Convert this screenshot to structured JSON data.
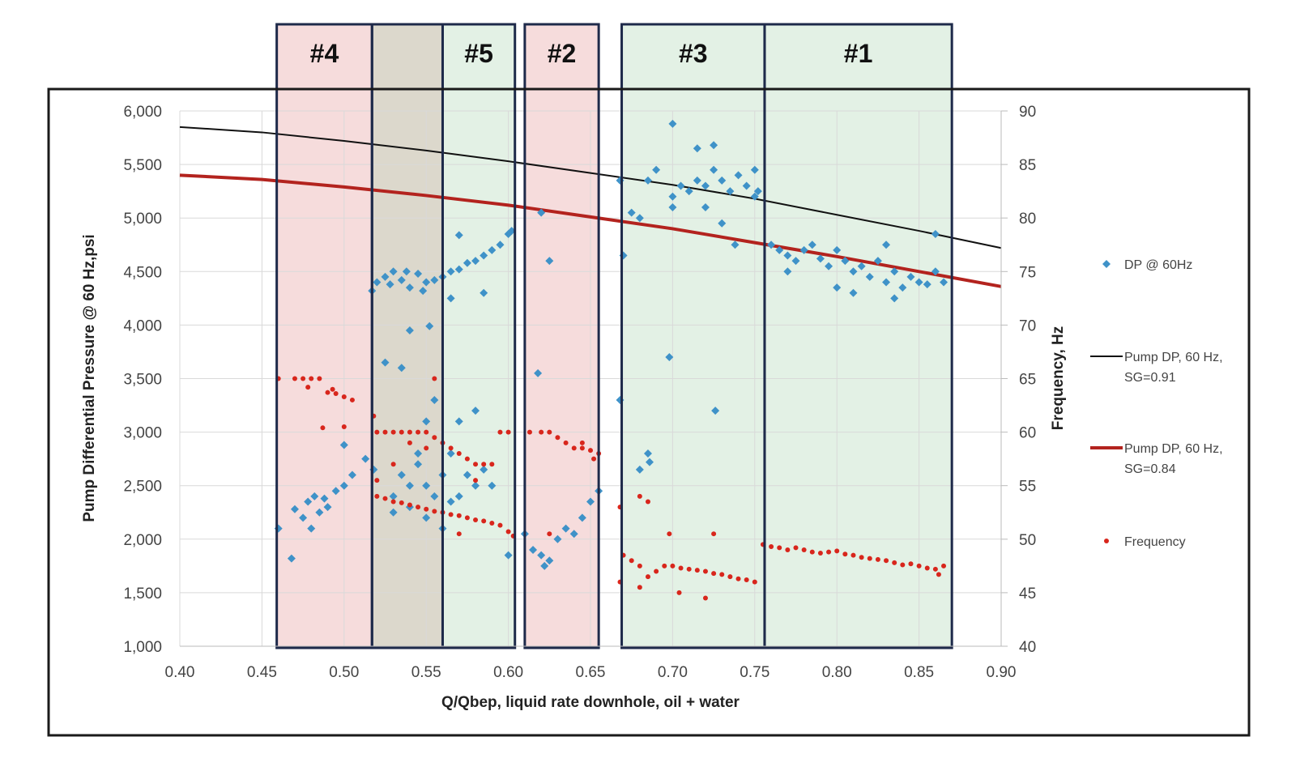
{
  "chart_data": {
    "type": "scatter",
    "xlabel": "Q/Qbep, liquid rate downhole, oil + water",
    "ylabel": "Pump Differential Pressure @ 60 Hz,psi",
    "y2label": "Frequency, Hz",
    "xlim": [
      0.4,
      0.9
    ],
    "ylim": [
      1000,
      6000
    ],
    "y2lim": [
      40,
      90
    ],
    "grid": true,
    "legend_position": "right",
    "x_ticks": [
      "0.40",
      "0.45",
      "0.50",
      "0.55",
      "0.60",
      "0.65",
      "0.70",
      "0.75",
      "0.80",
      "0.85",
      "0.90"
    ],
    "y_ticks": [
      "1,000",
      "1,500",
      "2,000",
      "2,500",
      "3,000",
      "3,500",
      "4,000",
      "4,500",
      "5,000",
      "5,500",
      "6,000"
    ],
    "y2_ticks": [
      "40",
      "45",
      "50",
      "55",
      "60",
      "65",
      "70",
      "75",
      "80",
      "85",
      "90"
    ],
    "regions": [
      {
        "label": "#4",
        "x": [
          0.459,
          0.517
        ],
        "color": "#f6dcdc"
      },
      {
        "label": "",
        "x": [
          0.517,
          0.56
        ],
        "color": "#dcd8cc"
      },
      {
        "label": "#5",
        "x": [
          0.56,
          0.604
        ],
        "color": "#e3f1e5"
      },
      {
        "label": "#2",
        "x": [
          0.61,
          0.655
        ],
        "color": "#f6dcdc"
      },
      {
        "label": "#3",
        "x": [
          0.669,
          0.756
        ],
        "color": "#e3f1e5"
      },
      {
        "label": "#1",
        "x": [
          0.756,
          0.87
        ],
        "color": "#e3f1e5"
      }
    ],
    "series": [
      {
        "name": "DP @ 60Hz",
        "kind": "scatter",
        "axis": "left",
        "marker": "diamond",
        "color": "#3f92c8",
        "points": [
          [
            0.46,
            2100
          ],
          [
            0.468,
            1820
          ],
          [
            0.47,
            2280
          ],
          [
            0.475,
            2200
          ],
          [
            0.478,
            2350
          ],
          [
            0.48,
            2100
          ],
          [
            0.482,
            2400
          ],
          [
            0.485,
            2250
          ],
          [
            0.488,
            2380
          ],
          [
            0.49,
            2300
          ],
          [
            0.495,
            2450
          ],
          [
            0.5,
            2500
          ],
          [
            0.505,
            2600
          ],
          [
            0.5,
            2880
          ],
          [
            0.513,
            2750
          ],
          [
            0.518,
            2650
          ],
          [
            0.517,
            4320
          ],
          [
            0.52,
            4400
          ],
          [
            0.525,
            4450
          ],
          [
            0.53,
            4500
          ],
          [
            0.535,
            4420
          ],
          [
            0.54,
            4350
          ],
          [
            0.545,
            4480
          ],
          [
            0.55,
            4400
          ],
          [
            0.555,
            4420
          ],
          [
            0.528,
            4380
          ],
          [
            0.538,
            4500
          ],
          [
            0.548,
            4320
          ],
          [
            0.54,
            3950
          ],
          [
            0.552,
            3990
          ],
          [
            0.525,
            3650
          ],
          [
            0.535,
            3600
          ],
          [
            0.53,
            2400
          ],
          [
            0.535,
            2600
          ],
          [
            0.54,
            2300
          ],
          [
            0.545,
            2800
          ],
          [
            0.55,
            3100
          ],
          [
            0.555,
            3300
          ],
          [
            0.56,
            2100
          ],
          [
            0.55,
            2200
          ],
          [
            0.54,
            2500
          ],
          [
            0.545,
            2700
          ],
          [
            0.55,
            2500
          ],
          [
            0.555,
            2400
          ],
          [
            0.53,
            2250
          ],
          [
            0.56,
            2600
          ],
          [
            0.56,
            4450
          ],
          [
            0.565,
            4500
          ],
          [
            0.57,
            4520
          ],
          [
            0.575,
            4580
          ],
          [
            0.58,
            4600
          ],
          [
            0.585,
            4650
          ],
          [
            0.59,
            4700
          ],
          [
            0.595,
            4750
          ],
          [
            0.6,
            4850
          ],
          [
            0.602,
            4880
          ],
          [
            0.57,
            4840
          ],
          [
            0.585,
            4300
          ],
          [
            0.565,
            4250
          ],
          [
            0.565,
            2800
          ],
          [
            0.57,
            3100
          ],
          [
            0.58,
            3200
          ],
          [
            0.575,
            2600
          ],
          [
            0.585,
            2650
          ],
          [
            0.59,
            2500
          ],
          [
            0.57,
            2400
          ],
          [
            0.565,
            2350
          ],
          [
            0.6,
            1850
          ],
          [
            0.58,
            2500
          ],
          [
            0.62,
            5050
          ],
          [
            0.625,
            4600
          ],
          [
            0.618,
            3550
          ],
          [
            0.61,
            2050
          ],
          [
            0.615,
            1900
          ],
          [
            0.62,
            1850
          ],
          [
            0.625,
            1800
          ],
          [
            0.63,
            2000
          ],
          [
            0.635,
            2100
          ],
          [
            0.64,
            2050
          ],
          [
            0.645,
            2200
          ],
          [
            0.65,
            2350
          ],
          [
            0.655,
            2450
          ],
          [
            0.622,
            1750
          ],
          [
            0.668,
            3300
          ],
          [
            0.67,
            4650
          ],
          [
            0.668,
            5350
          ],
          [
            0.675,
            5050
          ],
          [
            0.68,
            5000
          ],
          [
            0.685,
            5350
          ],
          [
            0.69,
            5450
          ],
          [
            0.7,
            5880
          ],
          [
            0.7,
            5200
          ],
          [
            0.705,
            5300
          ],
          [
            0.71,
            5250
          ],
          [
            0.715,
            5350
          ],
          [
            0.72,
            5300
          ],
          [
            0.725,
            5450
          ],
          [
            0.73,
            5350
          ],
          [
            0.735,
            5250
          ],
          [
            0.74,
            5400
          ],
          [
            0.745,
            5300
          ],
          [
            0.75,
            5200
          ],
          [
            0.715,
            5650
          ],
          [
            0.725,
            5680
          ],
          [
            0.7,
            5100
          ],
          [
            0.72,
            5100
          ],
          [
            0.738,
            4750
          ],
          [
            0.73,
            4950
          ],
          [
            0.698,
            3700
          ],
          [
            0.726,
            3200
          ],
          [
            0.685,
            2800
          ],
          [
            0.68,
            2650
          ],
          [
            0.686,
            2720
          ],
          [
            0.75,
            5450
          ],
          [
            0.752,
            5250
          ],
          [
            0.76,
            4750
          ],
          [
            0.765,
            4700
          ],
          [
            0.77,
            4650
          ],
          [
            0.775,
            4600
          ],
          [
            0.78,
            4700
          ],
          [
            0.785,
            4750
          ],
          [
            0.79,
            4620
          ],
          [
            0.795,
            4550
          ],
          [
            0.8,
            4700
          ],
          [
            0.805,
            4600
          ],
          [
            0.81,
            4500
          ],
          [
            0.815,
            4550
          ],
          [
            0.82,
            4450
          ],
          [
            0.825,
            4600
          ],
          [
            0.83,
            4400
          ],
          [
            0.835,
            4500
          ],
          [
            0.84,
            4350
          ],
          [
            0.845,
            4450
          ],
          [
            0.85,
            4400
          ],
          [
            0.855,
            4380
          ],
          [
            0.86,
            4500
          ],
          [
            0.865,
            4400
          ],
          [
            0.8,
            4350
          ],
          [
            0.835,
            4250
          ],
          [
            0.86,
            4850
          ],
          [
            0.83,
            4750
          ],
          [
            0.77,
            4500
          ],
          [
            0.81,
            4300
          ]
        ]
      },
      {
        "name": "Pump DP, 60 Hz, SG=0.91",
        "name_lines": [
          "Pump DP, 60 Hz,",
          "SG=0.91"
        ],
        "kind": "line",
        "axis": "left",
        "color": "#111111",
        "points": [
          [
            0.4,
            5850
          ],
          [
            0.45,
            5800
          ],
          [
            0.5,
            5720
          ],
          [
            0.55,
            5630
          ],
          [
            0.6,
            5530
          ],
          [
            0.65,
            5420
          ],
          [
            0.7,
            5310
          ],
          [
            0.75,
            5180
          ],
          [
            0.8,
            5030
          ],
          [
            0.85,
            4880
          ],
          [
            0.9,
            4720
          ]
        ]
      },
      {
        "name": "Pump DP, 60 Hz, SG=0.84",
        "name_lines": [
          "Pump DP, 60 Hz,",
          "SG=0.84"
        ],
        "kind": "line",
        "axis": "left",
        "color": "#b3231e",
        "points": [
          [
            0.4,
            5400
          ],
          [
            0.45,
            5360
          ],
          [
            0.5,
            5290
          ],
          [
            0.55,
            5210
          ],
          [
            0.6,
            5120
          ],
          [
            0.65,
            5010
          ],
          [
            0.7,
            4900
          ],
          [
            0.75,
            4770
          ],
          [
            0.8,
            4640
          ],
          [
            0.85,
            4500
          ],
          [
            0.9,
            4360
          ]
        ]
      },
      {
        "name": "Frequency",
        "kind": "scatter",
        "axis": "right",
        "marker": "dot",
        "color": "#d8261c",
        "points": [
          [
            0.46,
            65
          ],
          [
            0.47,
            65
          ],
          [
            0.475,
            65
          ],
          [
            0.48,
            65
          ],
          [
            0.485,
            65
          ],
          [
            0.478,
            64.2
          ],
          [
            0.49,
            63.7
          ],
          [
            0.493,
            64
          ],
          [
            0.495,
            63.6
          ],
          [
            0.5,
            63.3
          ],
          [
            0.505,
            63
          ],
          [
            0.518,
            61.5
          ],
          [
            0.5,
            60.5
          ],
          [
            0.487,
            60.4
          ],
          [
            0.52,
            60
          ],
          [
            0.525,
            60
          ],
          [
            0.53,
            60
          ],
          [
            0.535,
            60
          ],
          [
            0.54,
            60
          ],
          [
            0.545,
            60
          ],
          [
            0.55,
            60
          ],
          [
            0.555,
            59.5
          ],
          [
            0.56,
            59
          ],
          [
            0.565,
            58.5
          ],
          [
            0.57,
            58
          ],
          [
            0.575,
            57.5
          ],
          [
            0.58,
            57
          ],
          [
            0.585,
            57
          ],
          [
            0.59,
            57
          ],
          [
            0.595,
            60
          ],
          [
            0.54,
            59
          ],
          [
            0.55,
            58.5
          ],
          [
            0.53,
            57
          ],
          [
            0.58,
            55.5
          ],
          [
            0.52,
            55.5
          ],
          [
            0.555,
            65
          ],
          [
            0.52,
            54
          ],
          [
            0.525,
            53.8
          ],
          [
            0.53,
            53.5
          ],
          [
            0.535,
            53.4
          ],
          [
            0.54,
            53.2
          ],
          [
            0.545,
            53
          ],
          [
            0.55,
            52.8
          ],
          [
            0.555,
            52.6
          ],
          [
            0.56,
            52.5
          ],
          [
            0.565,
            52.3
          ],
          [
            0.57,
            52.2
          ],
          [
            0.575,
            52
          ],
          [
            0.58,
            51.8
          ],
          [
            0.585,
            51.7
          ],
          [
            0.59,
            51.5
          ],
          [
            0.595,
            51.3
          ],
          [
            0.6,
            50.7
          ],
          [
            0.603,
            50.3
          ],
          [
            0.57,
            50.5
          ],
          [
            0.6,
            60
          ],
          [
            0.613,
            60
          ],
          [
            0.62,
            60
          ],
          [
            0.625,
            60
          ],
          [
            0.63,
            59.5
          ],
          [
            0.635,
            59
          ],
          [
            0.64,
            58.5
          ],
          [
            0.645,
            58.5
          ],
          [
            0.65,
            58.3
          ],
          [
            0.655,
            58
          ],
          [
            0.645,
            59
          ],
          [
            0.652,
            57.5
          ],
          [
            0.625,
            50.5
          ],
          [
            0.668,
            53
          ],
          [
            0.67,
            48.5
          ],
          [
            0.675,
            48
          ],
          [
            0.68,
            47.5
          ],
          [
            0.685,
            46.5
          ],
          [
            0.69,
            47
          ],
          [
            0.695,
            47.5
          ],
          [
            0.7,
            47.5
          ],
          [
            0.705,
            47.3
          ],
          [
            0.71,
            47.2
          ],
          [
            0.715,
            47.1
          ],
          [
            0.72,
            47
          ],
          [
            0.725,
            46.8
          ],
          [
            0.73,
            46.7
          ],
          [
            0.735,
            46.5
          ],
          [
            0.74,
            46.3
          ],
          [
            0.745,
            46.2
          ],
          [
            0.75,
            46
          ],
          [
            0.68,
            54
          ],
          [
            0.685,
            53.5
          ],
          [
            0.698,
            50.5
          ],
          [
            0.725,
            50.5
          ],
          [
            0.704,
            45
          ],
          [
            0.72,
            44.5
          ],
          [
            0.68,
            45.5
          ],
          [
            0.668,
            46
          ],
          [
            0.755,
            49.5
          ],
          [
            0.76,
            49.3
          ],
          [
            0.765,
            49.2
          ],
          [
            0.77,
            49
          ],
          [
            0.775,
            49.2
          ],
          [
            0.78,
            49
          ],
          [
            0.785,
            48.8
          ],
          [
            0.79,
            48.7
          ],
          [
            0.795,
            48.8
          ],
          [
            0.8,
            48.9
          ],
          [
            0.805,
            48.6
          ],
          [
            0.81,
            48.5
          ],
          [
            0.815,
            48.3
          ],
          [
            0.82,
            48.2
          ],
          [
            0.825,
            48.1
          ],
          [
            0.83,
            48
          ],
          [
            0.835,
            47.8
          ],
          [
            0.84,
            47.6
          ],
          [
            0.845,
            47.7
          ],
          [
            0.85,
            47.5
          ],
          [
            0.855,
            47.3
          ],
          [
            0.86,
            47.2
          ],
          [
            0.865,
            47.5
          ],
          [
            0.862,
            46.7
          ]
        ]
      }
    ]
  }
}
